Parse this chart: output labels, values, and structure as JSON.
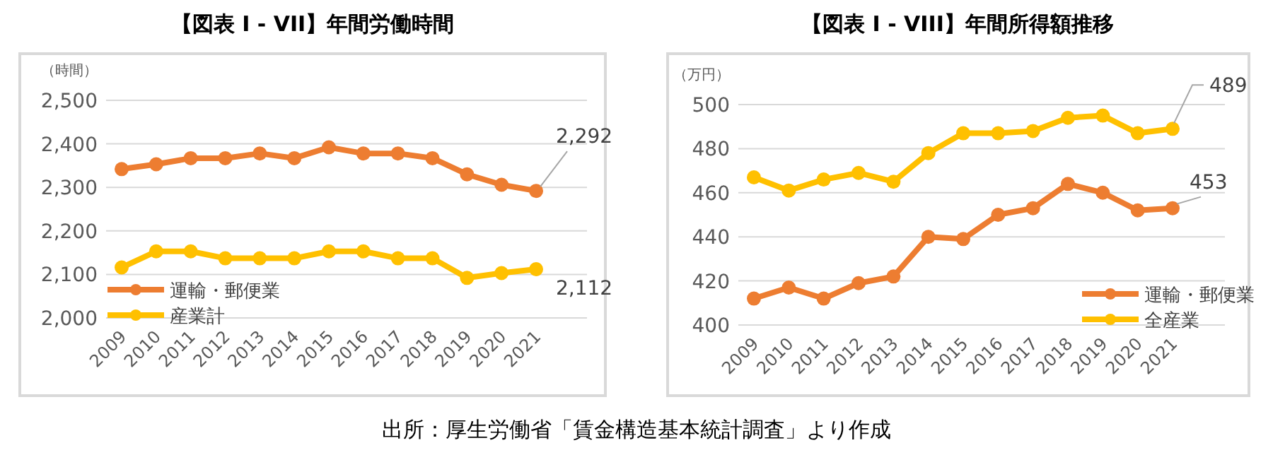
{
  "chart_data": [
    {
      "type": "line",
      "title": "【図表 I - VII】年間労働時間",
      "ylabel": "（時間）",
      "categories": [
        "2009",
        "2010",
        "2011",
        "2012",
        "2013",
        "2014",
        "2015",
        "2016",
        "2017",
        "2018",
        "2019",
        "2020",
        "2021"
      ],
      "series": [
        {
          "name": "運輸・郵便業",
          "color": "#ed7d31",
          "values": [
            2342,
            2353,
            2367,
            2367,
            2378,
            2367,
            2392,
            2378,
            2378,
            2367,
            2330,
            2306,
            2292
          ]
        },
        {
          "name": "産業計",
          "color": "#ffc000",
          "values": [
            2116,
            2153,
            2153,
            2137,
            2137,
            2137,
            2153,
            2153,
            2137,
            2137,
            2092,
            2103,
            2112
          ]
        }
      ],
      "ylim": [
        2000,
        2500
      ],
      "yticks": [
        {
          "value": 2000,
          "label": "2,000"
        },
        {
          "value": 2100,
          "label": "2,100"
        },
        {
          "value": 2200,
          "label": "2,200"
        },
        {
          "value": 2300,
          "label": "2,300"
        },
        {
          "value": 2400,
          "label": "2,400"
        },
        {
          "value": 2500,
          "label": "2,500"
        }
      ],
      "grid": "y",
      "legend": "bottom left",
      "marker": "circle",
      "annotations": [
        {
          "text": "2,292",
          "x": "2021",
          "y": 2292
        },
        {
          "text": "2,112",
          "x": "2021",
          "y": 2112
        },
        "出所：厚生労働省「賃金構造基本統計調査」より作成"
      ]
    },
    {
      "type": "line",
      "title": "【図表 I - VIII】年間所得額推移",
      "ylabel": "（万円）",
      "categories": [
        "2009",
        "2010",
        "2011",
        "2012",
        "2013",
        "2014",
        "2015",
        "2016",
        "2017",
        "2018",
        "2019",
        "2020",
        "2021"
      ],
      "series": [
        {
          "name": "運輸・郵便業",
          "color": "#ed7d31",
          "values": [
            412,
            417,
            412,
            419,
            422,
            440,
            439,
            450,
            453,
            464,
            460,
            452,
            453
          ]
        },
        {
          "name": "全産業",
          "color": "#ffc000",
          "values": [
            467,
            461,
            466,
            469,
            465,
            478,
            487,
            487,
            488,
            494,
            495,
            487,
            489
          ]
        }
      ],
      "ylim": [
        400,
        500
      ],
      "yticks": [
        400,
        420,
        440,
        460,
        480,
        500
      ],
      "grid": "y",
      "legend": "bottom right",
      "marker": "circle",
      "annotations": [
        {
          "text": "453",
          "x": "2021",
          "y": 453
        },
        {
          "text": "489",
          "x": "2021",
          "y": 489
        }
      ]
    }
  ]
}
